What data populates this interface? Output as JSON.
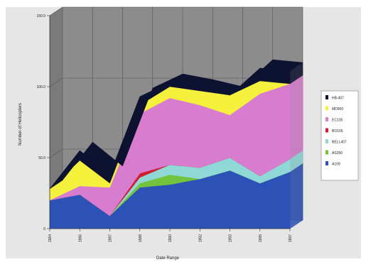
{
  "chart_data": {
    "type": "area",
    "stacked": true,
    "three_d": true,
    "title": "",
    "xlabel": "Date Range",
    "ylabel": "Number of Helicopters",
    "ylim": [
      0,
      150
    ],
    "y_ticks": [
      "0",
      "50.0",
      "100.0",
      "150.0"
    ],
    "categories": [
      "1984",
      "1986",
      "1987",
      "1988",
      "1990",
      "1992",
      "1993",
      "1995",
      "1997"
    ],
    "grid": true,
    "legend_position": "right",
    "series": [
      {
        "name": "A109",
        "color": "#2c51b7",
        "values": [
          20,
          24,
          9,
          29,
          31,
          35,
          41,
          32,
          40
        ]
      },
      {
        "name": "AS350",
        "color": "#73c43c",
        "values": [
          0,
          0,
          0,
          3,
          7,
          0,
          0,
          0,
          0
        ]
      },
      {
        "name": "BELL407",
        "color": "#90d8d8",
        "values": [
          0,
          0,
          0,
          4,
          7,
          8,
          9,
          5,
          9
        ]
      },
      {
        "name": "BO105",
        "color": "#d02030",
        "values": [
          0,
          0,
          0,
          3,
          0,
          0,
          0,
          0,
          0
        ]
      },
      {
        "name": "EC135",
        "color": "#d87cd0",
        "values": [
          0,
          6,
          20,
          42,
          47,
          44,
          30,
          58,
          53
        ]
      },
      {
        "name": "MD900",
        "color": "#f5f03c",
        "values": [
          8,
          18,
          3,
          6,
          8,
          10,
          14,
          9,
          0
        ]
      },
      {
        "name": "HB-407",
        "color": "#0c1230",
        "values": [
          0,
          7,
          6,
          6,
          3,
          2,
          0,
          9,
          9
        ]
      }
    ]
  }
}
